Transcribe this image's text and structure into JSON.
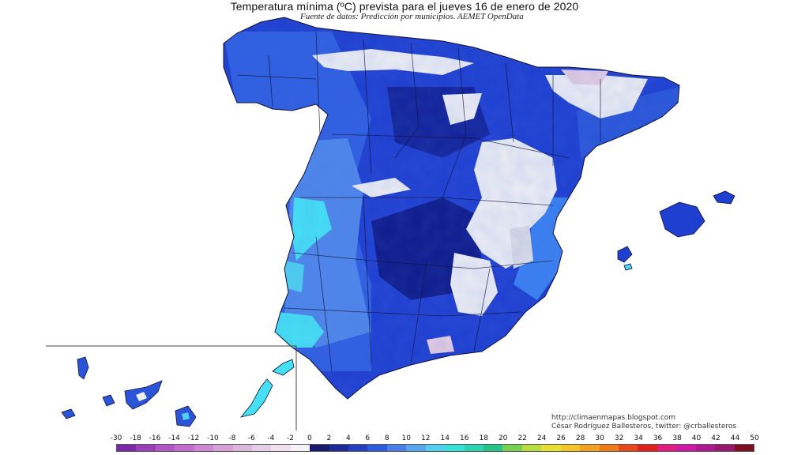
{
  "title": "Temperatura mínima (ºC) prevista para el jueves 16 de enero de 2020",
  "subtitle": "Fuente de datos: Predicción por municipios. AEMET OpenData",
  "credits": {
    "line1": "http://climaenmapas.blogspot.com",
    "line2": "César Rodríguez Ballesteros, twitter: @crballesteros"
  },
  "legend": {
    "labels": [
      "-30",
      "-18",
      "-16",
      "-14",
      "-12",
      "-10",
      "-8",
      "-6",
      "-4",
      "-2",
      "0",
      "2",
      "4",
      "6",
      "8",
      "10",
      "12",
      "14",
      "16",
      "18",
      "20",
      "22",
      "24",
      "26",
      "28",
      "30",
      "32",
      "34",
      "36",
      "38",
      "40",
      "42",
      "44",
      "50"
    ],
    "colors": [
      "#7a2aa8",
      "#9b3fb8",
      "#b255c6",
      "#c46bcf",
      "#cf86d4",
      "#d69fd6",
      "#ddb6dd",
      "#e6cfe6",
      "#eee0ee",
      "#f6f2f6",
      "#1a1a6e",
      "#1f2a9a",
      "#2440c0",
      "#2e5be0",
      "#4a7ee8",
      "#55a6ee",
      "#4fd0f0",
      "#34e0d8",
      "#2ad4b0",
      "#27c488",
      "#78d050",
      "#b8dc3c",
      "#e8e030",
      "#f4c428",
      "#f4a020",
      "#f07a18",
      "#e84818",
      "#e0201c",
      "#e01c80",
      "#d018a8",
      "#b01890",
      "#981870",
      "#7c1020"
    ]
  },
  "colors": {
    "sea": "#ffffff",
    "land_base": "#1f3fd0",
    "cold_core": "#0e1a8a",
    "mild_coast": "#3a7ff0",
    "cyan_zone": "#45e0f5",
    "frost": "#eeeef4",
    "frost_pink": "#e6cde2",
    "border": "#111133"
  }
}
